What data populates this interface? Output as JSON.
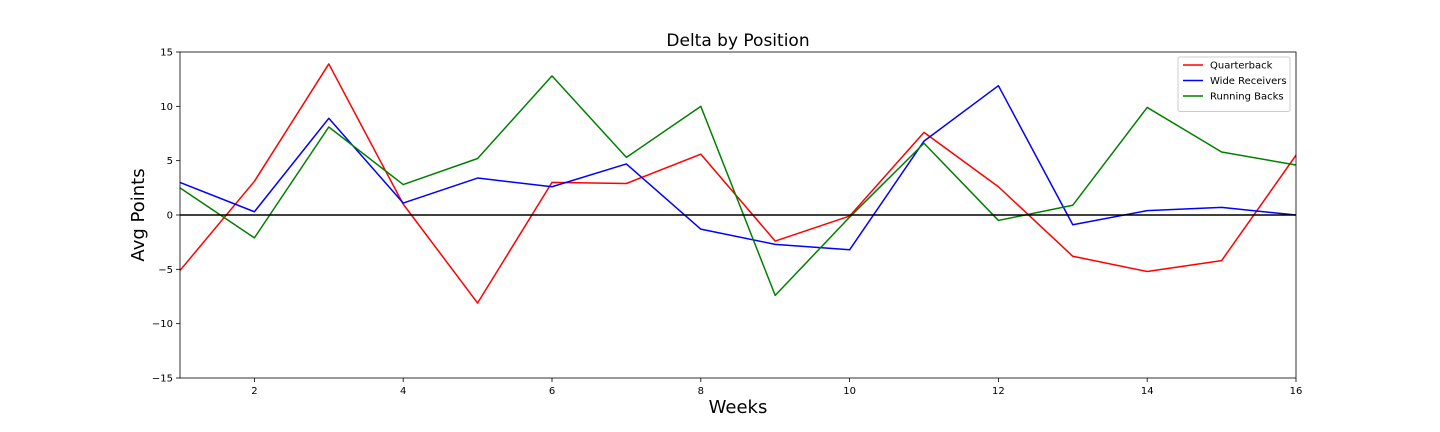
{
  "chart_data": {
    "type": "line",
    "title": "Delta by Position",
    "xlabel": "Weeks",
    "ylabel": "Avg Points",
    "xlim": [
      1,
      16
    ],
    "ylim": [
      -15,
      15
    ],
    "x_ticks": [
      2,
      4,
      6,
      8,
      10,
      12,
      14,
      16
    ],
    "y_ticks": [
      -15,
      -10,
      -5,
      0,
      5,
      10,
      15
    ],
    "y_tick_labels": [
      "−15",
      "−10",
      "−5",
      "0",
      "5",
      "10",
      "15"
    ],
    "x": [
      1,
      2,
      3,
      4,
      5,
      6,
      7,
      8,
      9,
      10,
      11,
      12,
      13,
      14,
      15,
      16
    ],
    "series": [
      {
        "name": "Quarterback",
        "color": "#ff0000",
        "values": [
          -5.1,
          3.1,
          13.9,
          1.0,
          -8.1,
          3.0,
          2.9,
          5.6,
          -2.4,
          -0.1,
          7.6,
          2.6,
          -3.8,
          -5.2,
          -4.2,
          5.5
        ]
      },
      {
        "name": "Wide Receivers",
        "color": "#0000ff",
        "values": [
          3.0,
          0.3,
          8.9,
          1.1,
          3.4,
          2.6,
          4.7,
          -1.3,
          -2.7,
          -3.2,
          6.8,
          11.9,
          -0.9,
          0.4,
          0.7,
          0.0
        ]
      },
      {
        "name": "Running Backs",
        "color": "#008000",
        "values": [
          2.5,
          -2.1,
          8.1,
          2.8,
          5.2,
          12.8,
          5.3,
          10.0,
          -7.4,
          -0.2,
          6.6,
          -0.5,
          0.9,
          9.9,
          5.8,
          4.6
        ]
      }
    ],
    "reference_line": {
      "y": 0,
      "color": "#000000"
    },
    "legend": "top-right",
    "grid": false
  }
}
